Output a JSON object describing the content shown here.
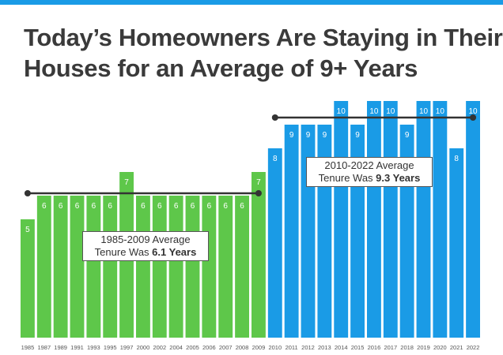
{
  "title": {
    "line1": "Today’s Homeowners Are Staying in Their",
    "line2": "Houses for an Average of 9+ Years"
  },
  "colors": {
    "accent_strip": "#1a9be6",
    "green_bars": "#5ec74a",
    "blue_bars": "#1a9be6",
    "average_line": "#333333"
  },
  "chart_data": {
    "type": "bar",
    "title": "Today’s Homeowners Are Staying in Their Houses for an Average of 9+ Years",
    "xlabel": "",
    "ylabel": "",
    "grid": false,
    "ylim": [
      0,
      10
    ],
    "categories": [
      "1985",
      "1987",
      "1989",
      "1991",
      "1993",
      "1995",
      "1997",
      "2000",
      "2002",
      "2004",
      "2005",
      "2006",
      "2007",
      "2008",
      "2009",
      "2010",
      "2011",
      "2012",
      "2013",
      "2014",
      "2015",
      "2016",
      "2017",
      "2018",
      "2019",
      "2020",
      "2021",
      "2022"
    ],
    "values": [
      5,
      6,
      6,
      6,
      6,
      6,
      7,
      6,
      6,
      6,
      6,
      6,
      6,
      6,
      7,
      8,
      9,
      9,
      9,
      10,
      9,
      10,
      10,
      9,
      10,
      10,
      8,
      10
    ],
    "series_color_groups": [
      "green",
      "green",
      "green",
      "green",
      "green",
      "green",
      "green",
      "green",
      "green",
      "green",
      "green",
      "green",
      "green",
      "green",
      "green",
      "blue",
      "blue",
      "blue",
      "blue",
      "blue",
      "blue",
      "blue",
      "blue",
      "blue",
      "blue",
      "blue",
      "blue",
      "blue"
    ],
    "averages": [
      {
        "period": "1985-2009",
        "value": 6.1,
        "label_line1": "1985-2009 Average",
        "label_prefix": "Tenure Was ",
        "label_bold": "6.1 Years"
      },
      {
        "period": "2010-2022",
        "value": 9.3,
        "label_line1": "2010-2022 Average",
        "label_prefix": "Tenure Was ",
        "label_bold": "9.3 Years"
      }
    ]
  }
}
